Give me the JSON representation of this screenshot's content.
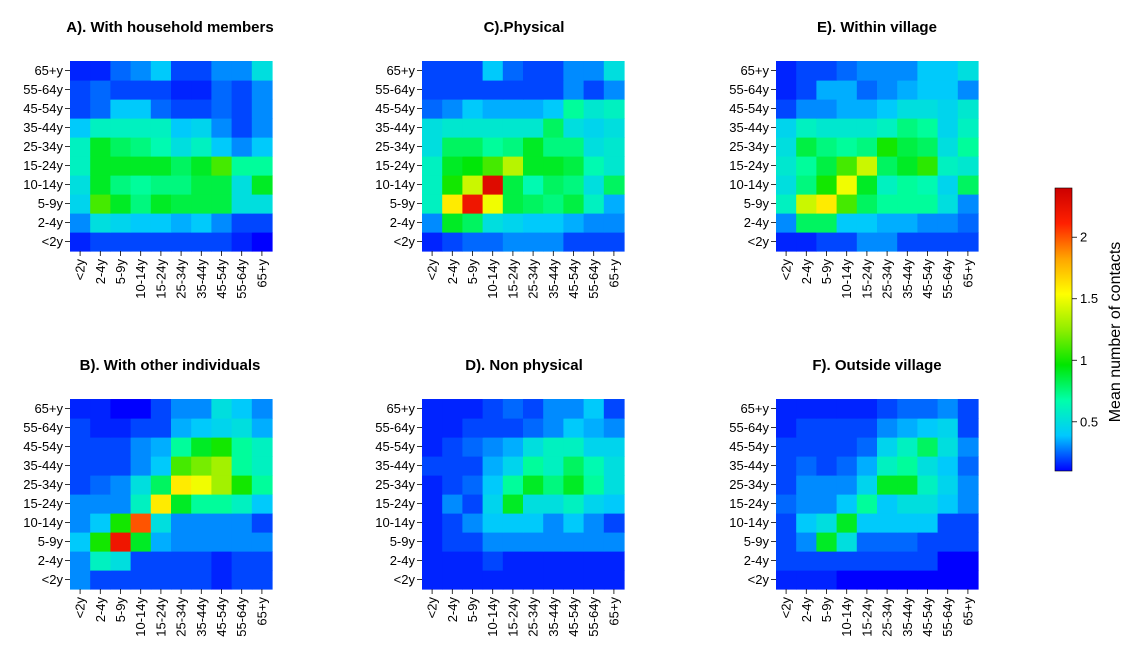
{
  "chart_data": {
    "type": "heatmap",
    "age_groups": [
      "<2y",
      "2-4y",
      "5-9y",
      "10-14y",
      "15-24y",
      "25-34y",
      "35-44y",
      "45-54y",
      "55-64y",
      "65+y"
    ],
    "colorbar": {
      "label": "Mean number of contacts",
      "ticks": [
        0.5,
        1,
        1.5,
        2
      ],
      "tick_labels": [
        "0.5",
        "1",
        "1.5",
        "2"
      ],
      "range": [
        0.1,
        2.4
      ],
      "colors": [
        "#0000ff",
        "#00c8ff",
        "#00ffaa",
        "#00e600",
        "#90ee00",
        "#ffff00",
        "#ffa500",
        "#ff2000",
        "#cc0000"
      ]
    },
    "panels": [
      {
        "id": "A",
        "title": "A). With household members",
        "values": [
          [
            0.15,
            0.2,
            0.2,
            0.2,
            0.2,
            0.2,
            0.2,
            0.2,
            0.15,
            0.1
          ],
          [
            0.3,
            0.5,
            0.45,
            0.4,
            0.4,
            0.35,
            0.4,
            0.3,
            0.2,
            0.2
          ],
          [
            0.45,
            1.1,
            0.9,
            0.75,
            0.9,
            0.85,
            0.85,
            0.85,
            0.5,
            0.5
          ],
          [
            0.5,
            0.9,
            0.75,
            0.7,
            0.75,
            0.75,
            0.85,
            0.85,
            0.5,
            0.9
          ],
          [
            0.6,
            0.9,
            0.9,
            0.9,
            0.9,
            0.8,
            0.9,
            1.1,
            0.7,
            0.7
          ],
          [
            0.6,
            0.9,
            0.8,
            0.75,
            0.65,
            0.5,
            0.6,
            0.4,
            0.3,
            0.4
          ],
          [
            0.4,
            0.6,
            0.6,
            0.6,
            0.6,
            0.4,
            0.45,
            0.3,
            0.2,
            0.3
          ],
          [
            0.2,
            0.25,
            0.4,
            0.4,
            0.25,
            0.2,
            0.2,
            0.25,
            0.2,
            0.3
          ],
          [
            0.2,
            0.25,
            0.2,
            0.2,
            0.2,
            0.15,
            0.15,
            0.25,
            0.2,
            0.3
          ],
          [
            0.15,
            0.15,
            0.25,
            0.3,
            0.4,
            0.2,
            0.2,
            0.3,
            0.3,
            0.5
          ]
        ]
      },
      {
        "id": "B",
        "title": "B). With other individuals",
        "values": [
          [
            0.3,
            0.2,
            0.2,
            0.2,
            0.2,
            0.2,
            0.2,
            0.15,
            0.2,
            0.2
          ],
          [
            0.3,
            0.6,
            0.5,
            0.2,
            0.2,
            0.2,
            0.2,
            0.15,
            0.2,
            0.2
          ],
          [
            0.4,
            1.0,
            2.2,
            0.9,
            0.35,
            0.3,
            0.3,
            0.3,
            0.3,
            0.3
          ],
          [
            0.3,
            0.4,
            1.0,
            2.0,
            0.5,
            0.3,
            0.3,
            0.3,
            0.3,
            0.2
          ],
          [
            0.3,
            0.3,
            0.3,
            0.6,
            1.6,
            0.9,
            0.7,
            0.7,
            0.6,
            0.4
          ],
          [
            0.2,
            0.25,
            0.3,
            0.5,
            0.8,
            1.6,
            1.5,
            1.3,
            1.0,
            0.7
          ],
          [
            0.2,
            0.2,
            0.2,
            0.3,
            0.4,
            1.1,
            1.2,
            1.3,
            0.7,
            0.6
          ],
          [
            0.2,
            0.2,
            0.2,
            0.3,
            0.35,
            0.7,
            0.9,
            1.0,
            0.7,
            0.6
          ],
          [
            0.2,
            0.15,
            0.15,
            0.2,
            0.2,
            0.35,
            0.4,
            0.45,
            0.5,
            0.35
          ],
          [
            0.15,
            0.15,
            0.1,
            0.1,
            0.2,
            0.3,
            0.3,
            0.5,
            0.4,
            0.3
          ]
        ]
      },
      {
        "id": "C",
        "title": "C).Physical",
        "values": [
          [
            0.15,
            0.2,
            0.25,
            0.25,
            0.3,
            0.3,
            0.3,
            0.2,
            0.2,
            0.2
          ],
          [
            0.3,
            0.9,
            0.8,
            0.5,
            0.45,
            0.4,
            0.4,
            0.35,
            0.3,
            0.3
          ],
          [
            0.6,
            1.6,
            2.2,
            1.5,
            0.85,
            0.8,
            0.75,
            0.85,
            0.6,
            0.35
          ],
          [
            0.6,
            1.0,
            1.4,
            2.3,
            0.85,
            0.65,
            0.8,
            0.75,
            0.5,
            0.8
          ],
          [
            0.6,
            0.9,
            0.95,
            1.1,
            1.35,
            0.9,
            0.9,
            0.85,
            0.65,
            0.55
          ],
          [
            0.5,
            0.8,
            0.8,
            0.7,
            0.75,
            0.9,
            0.75,
            0.75,
            0.5,
            0.55
          ],
          [
            0.5,
            0.55,
            0.55,
            0.55,
            0.55,
            0.55,
            0.8,
            0.5,
            0.45,
            0.5
          ],
          [
            0.25,
            0.3,
            0.4,
            0.35,
            0.35,
            0.35,
            0.4,
            0.7,
            0.55,
            0.6
          ],
          [
            0.2,
            0.2,
            0.2,
            0.2,
            0.2,
            0.2,
            0.2,
            0.3,
            0.2,
            0.3
          ],
          [
            0.2,
            0.2,
            0.2,
            0.4,
            0.25,
            0.2,
            0.2,
            0.3,
            0.3,
            0.5
          ]
        ]
      },
      {
        "id": "D",
        "title": "D). Non physical",
        "values": [
          [
            0.15,
            0.15,
            0.15,
            0.15,
            0.15,
            0.15,
            0.15,
            0.15,
            0.15,
            0.15
          ],
          [
            0.15,
            0.15,
            0.15,
            0.2,
            0.15,
            0.15,
            0.15,
            0.15,
            0.15,
            0.15
          ],
          [
            0.15,
            0.2,
            0.2,
            0.3,
            0.3,
            0.3,
            0.3,
            0.3,
            0.3,
            0.3
          ],
          [
            0.15,
            0.2,
            0.3,
            0.4,
            0.4,
            0.4,
            0.3,
            0.4,
            0.3,
            0.2
          ],
          [
            0.15,
            0.3,
            0.2,
            0.45,
            0.9,
            0.5,
            0.5,
            0.6,
            0.45,
            0.4
          ],
          [
            0.15,
            0.2,
            0.25,
            0.4,
            0.7,
            0.9,
            0.75,
            0.9,
            0.7,
            0.5
          ],
          [
            0.2,
            0.2,
            0.2,
            0.35,
            0.45,
            0.7,
            0.6,
            0.8,
            0.65,
            0.5
          ],
          [
            0.15,
            0.2,
            0.25,
            0.3,
            0.35,
            0.5,
            0.6,
            0.6,
            0.45,
            0.45
          ],
          [
            0.15,
            0.15,
            0.2,
            0.2,
            0.2,
            0.25,
            0.3,
            0.4,
            0.35,
            0.3
          ],
          [
            0.15,
            0.15,
            0.15,
            0.2,
            0.25,
            0.2,
            0.3,
            0.3,
            0.4,
            0.2
          ]
        ]
      },
      {
        "id": "E",
        "title": "E). Within village",
        "values": [
          [
            0.15,
            0.15,
            0.2,
            0.2,
            0.3,
            0.3,
            0.2,
            0.2,
            0.2,
            0.2
          ],
          [
            0.3,
            0.8,
            0.8,
            0.4,
            0.4,
            0.35,
            0.35,
            0.3,
            0.3,
            0.25
          ],
          [
            0.6,
            1.4,
            1.6,
            1.1,
            0.8,
            0.7,
            0.7,
            0.7,
            0.5,
            0.3
          ],
          [
            0.5,
            0.75,
            1.0,
            1.5,
            0.9,
            0.6,
            0.7,
            0.65,
            0.45,
            0.8
          ],
          [
            0.55,
            0.7,
            0.85,
            1.1,
            1.4,
            0.8,
            0.9,
            1.05,
            0.6,
            0.55
          ],
          [
            0.5,
            0.85,
            0.75,
            0.7,
            0.75,
            1.0,
            0.85,
            0.8,
            0.5,
            0.7
          ],
          [
            0.45,
            0.6,
            0.55,
            0.55,
            0.55,
            0.6,
            0.75,
            0.7,
            0.45,
            0.6
          ],
          [
            0.2,
            0.3,
            0.3,
            0.35,
            0.35,
            0.4,
            0.5,
            0.5,
            0.45,
            0.55
          ],
          [
            0.15,
            0.2,
            0.35,
            0.35,
            0.25,
            0.3,
            0.35,
            0.4,
            0.4,
            0.3
          ],
          [
            0.15,
            0.2,
            0.2,
            0.25,
            0.3,
            0.3,
            0.3,
            0.4,
            0.4,
            0.5
          ]
        ]
      },
      {
        "id": "F",
        "title": "F). Outside village",
        "values": [
          [
            0.15,
            0.15,
            0.15,
            0.1,
            0.1,
            0.1,
            0.1,
            0.1,
            0.1,
            0.1
          ],
          [
            0.2,
            0.2,
            0.2,
            0.2,
            0.2,
            0.2,
            0.2,
            0.2,
            0.1,
            0.1
          ],
          [
            0.2,
            0.3,
            0.9,
            0.5,
            0.25,
            0.25,
            0.25,
            0.2,
            0.2,
            0.2
          ],
          [
            0.2,
            0.4,
            0.5,
            0.9,
            0.4,
            0.4,
            0.4,
            0.4,
            0.2,
            0.2
          ],
          [
            0.25,
            0.3,
            0.3,
            0.4,
            0.7,
            0.4,
            0.5,
            0.5,
            0.4,
            0.3
          ],
          [
            0.2,
            0.3,
            0.3,
            0.3,
            0.45,
            0.9,
            0.9,
            0.6,
            0.45,
            0.3
          ],
          [
            0.2,
            0.25,
            0.2,
            0.25,
            0.35,
            0.6,
            0.7,
            0.5,
            0.4,
            0.25
          ],
          [
            0.2,
            0.2,
            0.2,
            0.2,
            0.25,
            0.45,
            0.6,
            0.8,
            0.5,
            0.3
          ],
          [
            0.15,
            0.2,
            0.2,
            0.2,
            0.2,
            0.3,
            0.35,
            0.4,
            0.45,
            0.2
          ],
          [
            0.15,
            0.15,
            0.15,
            0.15,
            0.15,
            0.2,
            0.25,
            0.25,
            0.3,
            0.2
          ]
        ]
      }
    ]
  }
}
